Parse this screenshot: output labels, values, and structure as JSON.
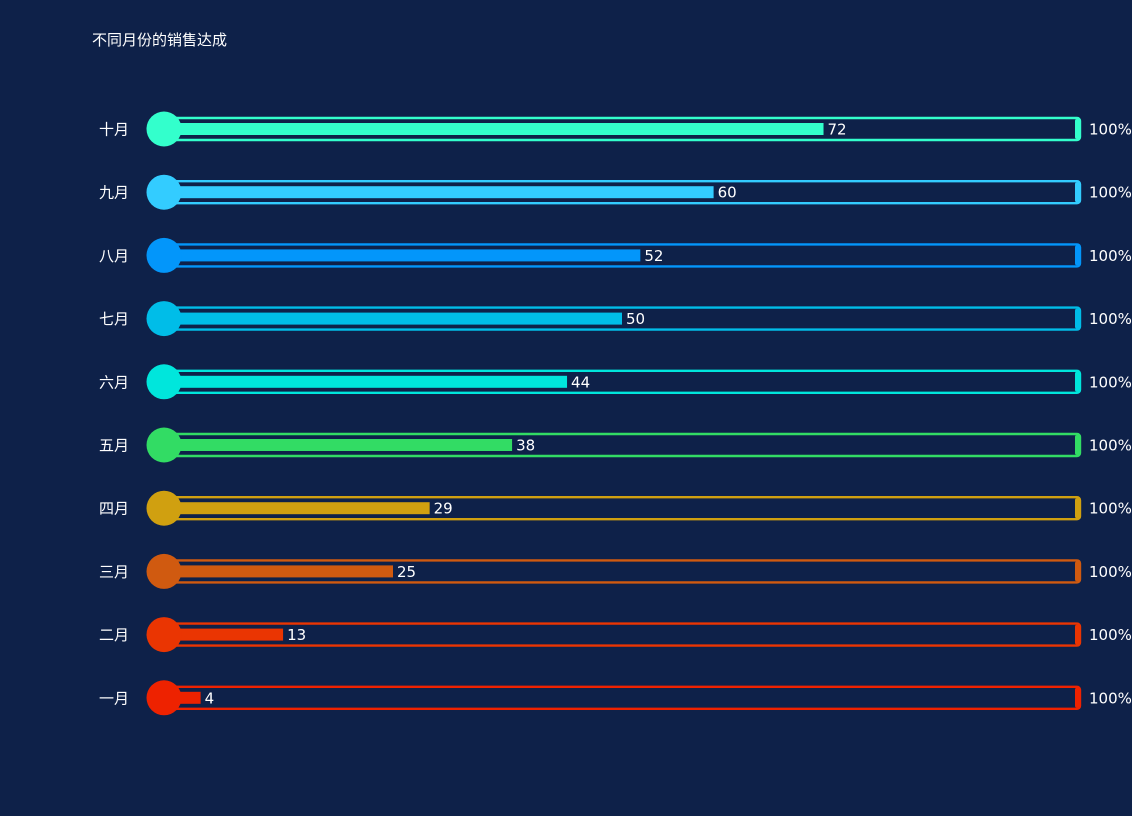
{
  "chart_data": {
    "type": "bar",
    "orientation": "horizontal",
    "title": "不同月份的销售达成",
    "categories": [
      "十月",
      "九月",
      "八月",
      "七月",
      "六月",
      "五月",
      "四月",
      "三月",
      "二月",
      "一月"
    ],
    "values": [
      72,
      60,
      52,
      50,
      44,
      38,
      29,
      25,
      13,
      4
    ],
    "max_labels": [
      "100%",
      "100%",
      "100%",
      "100%",
      "100%",
      "100%",
      "100%",
      "100%",
      "100%",
      "100%"
    ],
    "xlim": [
      0,
      100
    ],
    "colors": [
      "#33ffcc",
      "#33ccff",
      "#0396fa",
      "#00bde8",
      "#00e6dc",
      "#32dc64",
      "#d0a010",
      "#d05a10",
      "#ea3502",
      "#ee2200"
    ],
    "grid": false,
    "legend": "none"
  }
}
